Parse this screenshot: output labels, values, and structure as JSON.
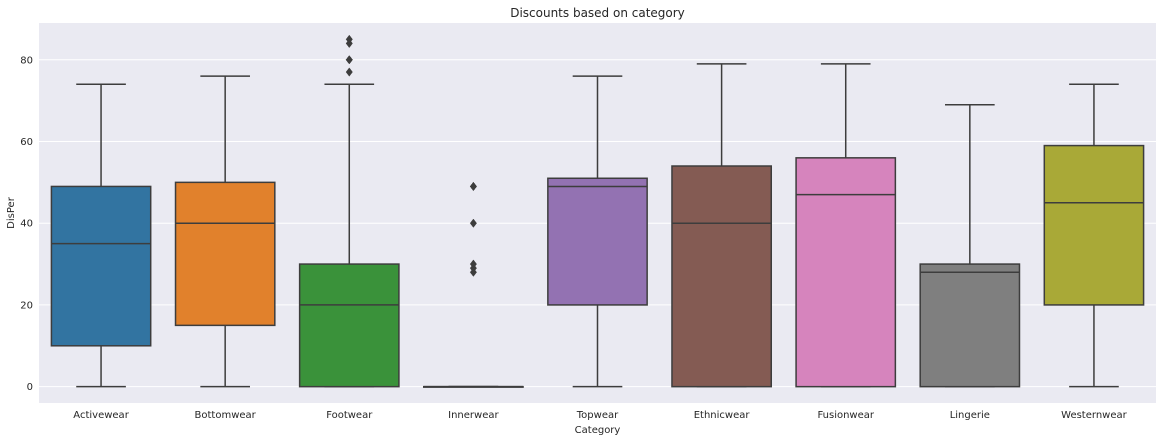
{
  "chart_data": {
    "type": "boxplot",
    "title": "Discounts based on category",
    "xlabel": "Category",
    "ylabel": "DisPer",
    "ylim": [
      -4,
      89
    ],
    "yticks": [
      0,
      20,
      40,
      60,
      80
    ],
    "grid": true,
    "categories": [
      {
        "name": "Activewear",
        "color": "#3274a1",
        "whisker_low": 0,
        "q1": 10,
        "median": 35,
        "q3": 49,
        "whisker_high": 74,
        "outliers": []
      },
      {
        "name": "Bottomwear",
        "color": "#e1812c",
        "whisker_low": 0,
        "q1": 15,
        "median": 40,
        "q3": 50,
        "whisker_high": 76,
        "outliers": []
      },
      {
        "name": "Footwear",
        "color": "#3a923a",
        "whisker_low": 0,
        "q1": 0,
        "median": 20,
        "q3": 30,
        "whisker_high": 74,
        "outliers": [
          77,
          80,
          80,
          84,
          85
        ]
      },
      {
        "name": "Innerwear",
        "color": "#c03d3e",
        "whisker_low": 0,
        "q1": 0,
        "median": 0,
        "q3": 0,
        "whisker_high": 0,
        "outliers": [
          28,
          29,
          30,
          40,
          49,
          49
        ]
      },
      {
        "name": "Topwear",
        "color": "#9372b2",
        "whisker_low": 0,
        "q1": 20,
        "median": 49,
        "q3": 51,
        "whisker_high": 76,
        "outliers": []
      },
      {
        "name": "Ethnicwear",
        "color": "#845b53",
        "whisker_low": 0,
        "q1": 0,
        "median": 40,
        "q3": 54,
        "whisker_high": 79,
        "outliers": []
      },
      {
        "name": "Fusionwear",
        "color": "#d684bd",
        "whisker_low": 0,
        "q1": 0,
        "median": 47,
        "q3": 56,
        "whisker_high": 79,
        "outliers": []
      },
      {
        "name": "Lingerie",
        "color": "#7f7f7f",
        "whisker_low": 0,
        "q1": 0,
        "median": 28,
        "q3": 30,
        "whisker_high": 69,
        "outliers": []
      },
      {
        "name": "Westernwear",
        "color": "#a9a937",
        "whisker_low": 0,
        "q1": 20,
        "median": 45,
        "q3": 59,
        "whisker_high": 74,
        "outliers": []
      }
    ],
    "colors": {
      "background": "#eaeaf2",
      "grid": "#ffffff",
      "line": "#3d3d3d"
    }
  }
}
